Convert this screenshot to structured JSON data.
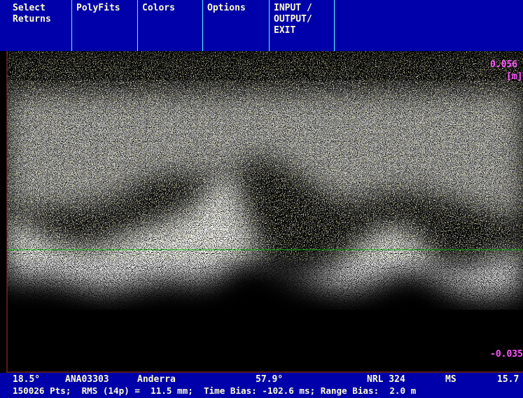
{
  "menu": [
    {
      "lines": [
        "Select",
        "Returns"
      ]
    },
    {
      "lines": [
        "PolyFits"
      ]
    },
    {
      "lines": [
        "Colors"
      ]
    },
    {
      "lines": [
        "Options"
      ]
    },
    {
      "lines": [
        "INPUT /",
        "OUTPUT/",
        "EXIT"
      ]
    }
  ],
  "plot": {
    "top_label": "0.056",
    "unit_label": "[m]",
    "bottom_label": "-0.035"
  },
  "status": {
    "line1": [
      "18.5°",
      "ANA03303",
      "Anderra",
      "57.9°",
      "NRL 324",
      "MS",
      "15.7"
    ],
    "line2": "150026 Pts;  RMS (14p) =  11.5 mm;  Time Bias: -102.6 ms; Range Bias:  2.0 m"
  }
}
